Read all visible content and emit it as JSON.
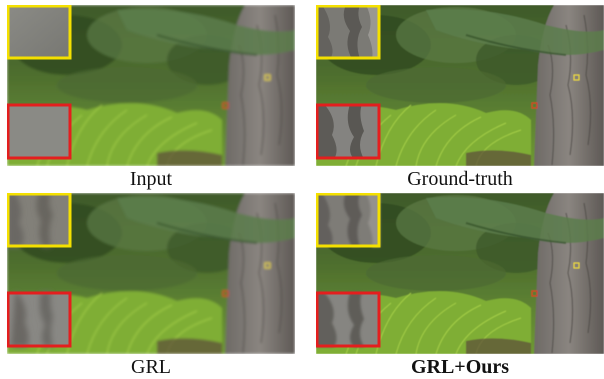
{
  "panels": [
    {
      "id": "input",
      "caption": "Input"
    },
    {
      "id": "ground-truth",
      "caption": "Ground-truth"
    },
    {
      "id": "grl",
      "caption": "GRL"
    },
    {
      "id": "grl-ours",
      "caption": "GRL+Ours"
    }
  ],
  "colors": {
    "zoom_border_top": "#f4e000",
    "zoom_border_bottom": "#e41e1e"
  }
}
